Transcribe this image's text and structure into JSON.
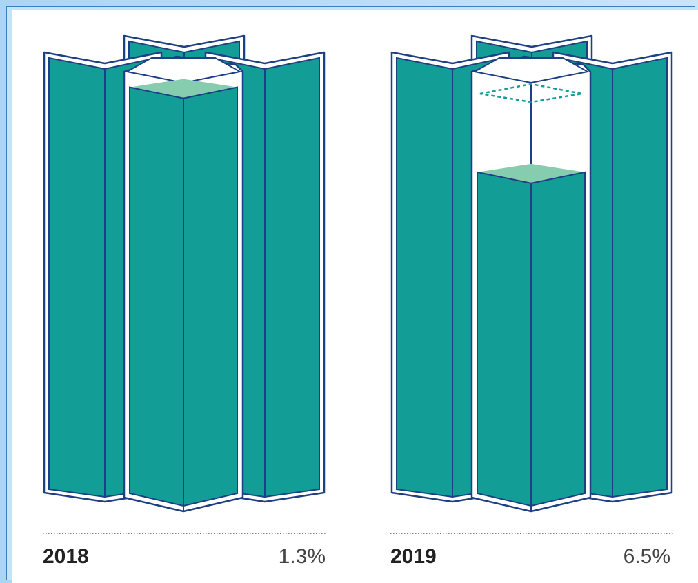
{
  "colors": {
    "teal": "#129e96",
    "teal_top": "#86cdb0",
    "outline": "#1e3f82",
    "card": "#ffffff"
  },
  "chart_data": [
    {
      "type": "bar",
      "category": "2018",
      "label": "1.3%",
      "value": 1.3,
      "center_fill_level": 0.96
    },
    {
      "type": "bar",
      "category": "2019",
      "label": "6.5%",
      "value": 6.5,
      "center_fill_level": 0.76,
      "previous_level_marker": true
    }
  ]
}
